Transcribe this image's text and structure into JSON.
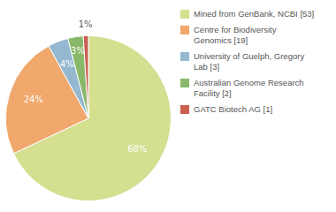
{
  "chart_data": {
    "type": "pie",
    "categories": [
      "Mined from GenBank, NCBI [53]",
      "Centre for Biodiversity\nGenomics [19]",
      "University of Guelph, Gregory\nLab [3]",
      "Australian Genome Research\nFacility [2]",
      "GATC Biotech AG [1]"
    ],
    "values": [
      68,
      24,
      4,
      3,
      1
    ],
    "value_labels": [
      "68%",
      "24%",
      "4%",
      "3%",
      "1%"
    ],
    "colors": [
      "#d4df90",
      "#f0a86c",
      "#94b8d0",
      "#8ab86a",
      "#c96050"
    ],
    "data_labels": true,
    "legend": "right"
  }
}
